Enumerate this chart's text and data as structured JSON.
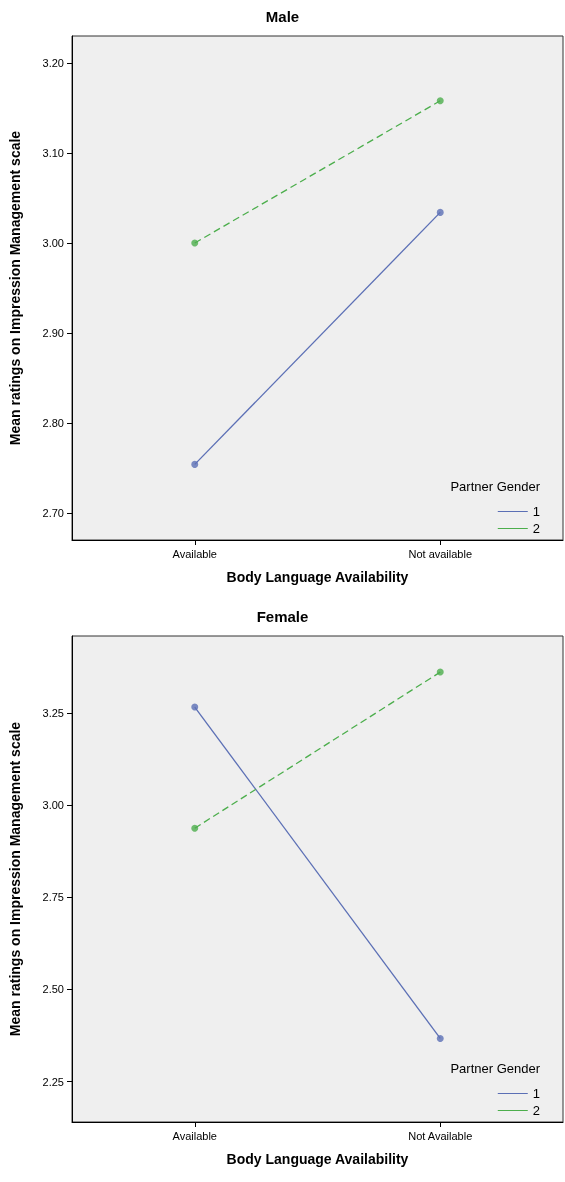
{
  "chart_data": [
    {
      "type": "line",
      "title": "Male",
      "xlabel": "Body Language Availability",
      "ylabel": "Mean ratings on Impression Management scale",
      "legend_title": "Partner Gender",
      "legend": "bottom right",
      "marker": "circle",
      "grid": false,
      "categories": [
        "Available",
        "Not available"
      ],
      "ylim": [
        2.67,
        3.23
      ],
      "yticks": [
        {
          "value": 2.7,
          "label": "2.70"
        },
        {
          "value": 2.8,
          "label": "2.80"
        },
        {
          "value": 2.9,
          "label": "2.90"
        },
        {
          "value": 3.0,
          "label": "3.00"
        },
        {
          "value": 3.1,
          "label": "3.10"
        },
        {
          "value": 3.2,
          "label": "3.20"
        }
      ],
      "series": [
        {
          "name": "1",
          "color": "#5b6fb5",
          "line_style": "solid",
          "values": [
            2.754,
            3.034
          ]
        },
        {
          "name": "2",
          "color": "#4cae4c",
          "line_style": "dashed",
          "values": [
            3.0,
            3.158
          ]
        }
      ]
    },
    {
      "type": "line",
      "title": "Female",
      "xlabel": "Body Language Availability",
      "ylabel": "Mean ratings on Impression Management scale",
      "legend_title": "Partner Gender",
      "legend": "bottom right",
      "marker": "circle",
      "grid": false,
      "categories": [
        "Available",
        "Not Available"
      ],
      "ylim": [
        2.14,
        3.46
      ],
      "yticks": [
        {
          "value": 2.25,
          "label": "2.25"
        },
        {
          "value": 2.5,
          "label": "2.50"
        },
        {
          "value": 2.75,
          "label": "2.75"
        },
        {
          "value": 3.0,
          "label": "3.00"
        },
        {
          "value": 3.25,
          "label": "3.25"
        }
      ],
      "series": [
        {
          "name": "1",
          "color": "#5b6fb5",
          "line_style": "solid",
          "values": [
            3.267,
            2.367
          ]
        },
        {
          "name": "2",
          "color": "#4cae4c",
          "line_style": "dashed",
          "values": [
            2.938,
            3.362
          ]
        }
      ]
    }
  ]
}
